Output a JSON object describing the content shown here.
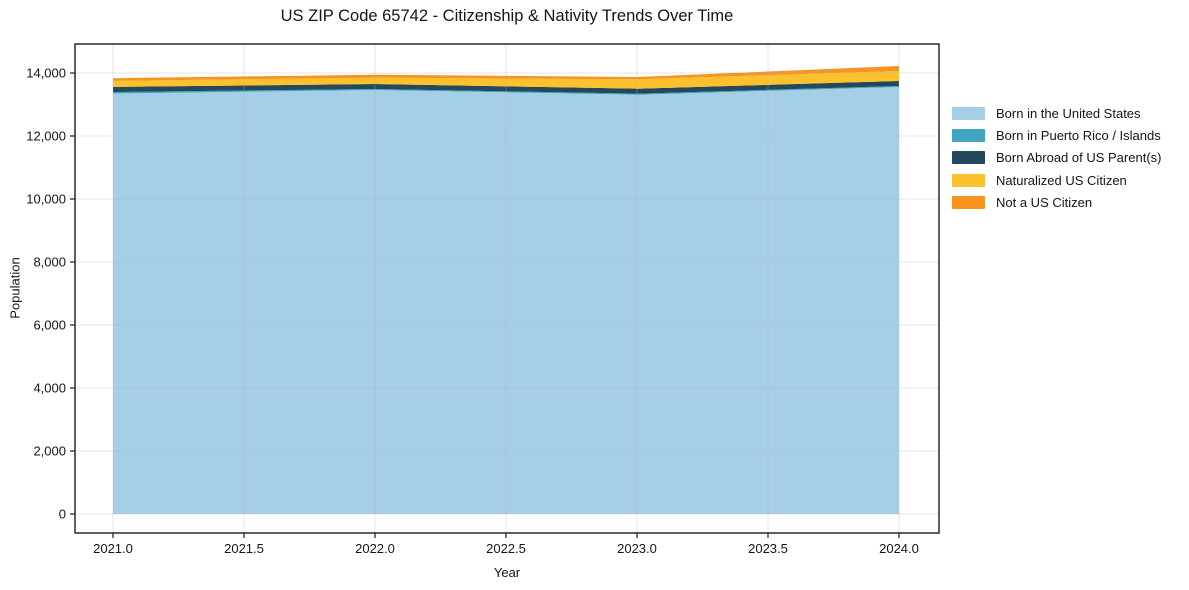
{
  "chart_data": {
    "type": "area",
    "stacked": true,
    "title": "US ZIP Code 65742 - Citizenship & Nativity Trends Over Time",
    "xlabel": "Year",
    "ylabel": "Population",
    "x": [
      2021,
      2022,
      2023,
      2024
    ],
    "series": [
      {
        "name": "Born in the United States",
        "color": "#a5cfe6",
        "values": [
          13350,
          13460,
          13310,
          13556
        ]
      },
      {
        "name": "Born in Puerto Rico / Islands",
        "color": "#41a5c2",
        "values": [
          48,
          32,
          32,
          31
        ]
      },
      {
        "name": "Born Abroad of US Parent(s)",
        "color": "#24485c",
        "values": [
          160,
          160,
          160,
          160
        ]
      },
      {
        "name": "Naturalized US Citizen",
        "color": "#fcc12d",
        "values": [
          190,
          200,
          298,
          317
        ]
      },
      {
        "name": "Not a US Citizen",
        "color": "#f7941f",
        "values": [
          86,
          95,
          73,
          159
        ]
      }
    ],
    "totals": [
      13834,
      13947,
      13873,
      14223
    ],
    "x_ticks": [
      {
        "value": 2021.0,
        "label": "2021.0"
      },
      {
        "value": 2021.5,
        "label": "2021.5"
      },
      {
        "value": 2022.0,
        "label": "2022.0"
      },
      {
        "value": 2022.5,
        "label": "2022.5"
      },
      {
        "value": 2023.0,
        "label": "2023.0"
      },
      {
        "value": 2023.5,
        "label": "2023.5"
      },
      {
        "value": 2024.0,
        "label": "2024.0"
      }
    ],
    "y_ticks": [
      {
        "value": 0,
        "label": "0"
      },
      {
        "value": 2000,
        "label": "2,000"
      },
      {
        "value": 4000,
        "label": "4,000"
      },
      {
        "value": 6000,
        "label": "6,000"
      },
      {
        "value": 8000,
        "label": "8,000"
      },
      {
        "value": 10000,
        "label": "10,000"
      },
      {
        "value": 12000,
        "label": "12,000"
      },
      {
        "value": 14000,
        "label": "14,000"
      }
    ],
    "xlim": [
      2020.855,
      2024.145
    ],
    "ylim": [
      -600,
      14950
    ],
    "grid": true,
    "grid_color": "#b3b3b3",
    "legend_position": "right-outside",
    "legend_frame": false,
    "background": "#ffffff",
    "spine_color": "#1c1c1c"
  }
}
